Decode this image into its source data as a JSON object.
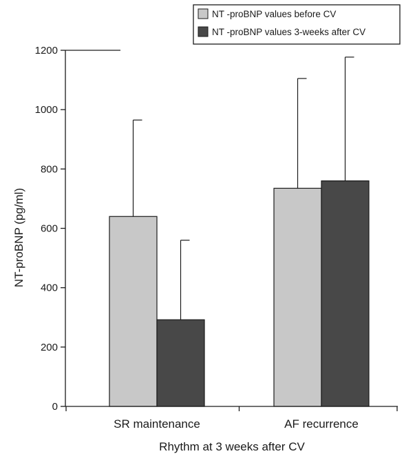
{
  "chart_data": {
    "type": "bar",
    "title": "",
    "xlabel": "Rhythm at 3 weeks after CV",
    "ylabel": "NT-proBNP (pg/ml)",
    "ylim": [
      0,
      1200
    ],
    "yticks": [
      0,
      200,
      400,
      600,
      800,
      1000,
      1200
    ],
    "categories": [
      "SR maintenance",
      "AF recurrence"
    ],
    "series": [
      {
        "name": "NT -proBNP values before CV",
        "color": "#c8c8c8",
        "values": [
          640,
          735
        ],
        "error_upper": [
          965,
          1105
        ]
      },
      {
        "name": "NT -proBNP values 3-weeks after CV",
        "color": "#484848",
        "values": [
          292,
          760
        ],
        "error_upper": [
          560,
          1177
        ]
      }
    ],
    "error_bars": "upper",
    "legend_position": "top-right",
    "grid": false
  }
}
